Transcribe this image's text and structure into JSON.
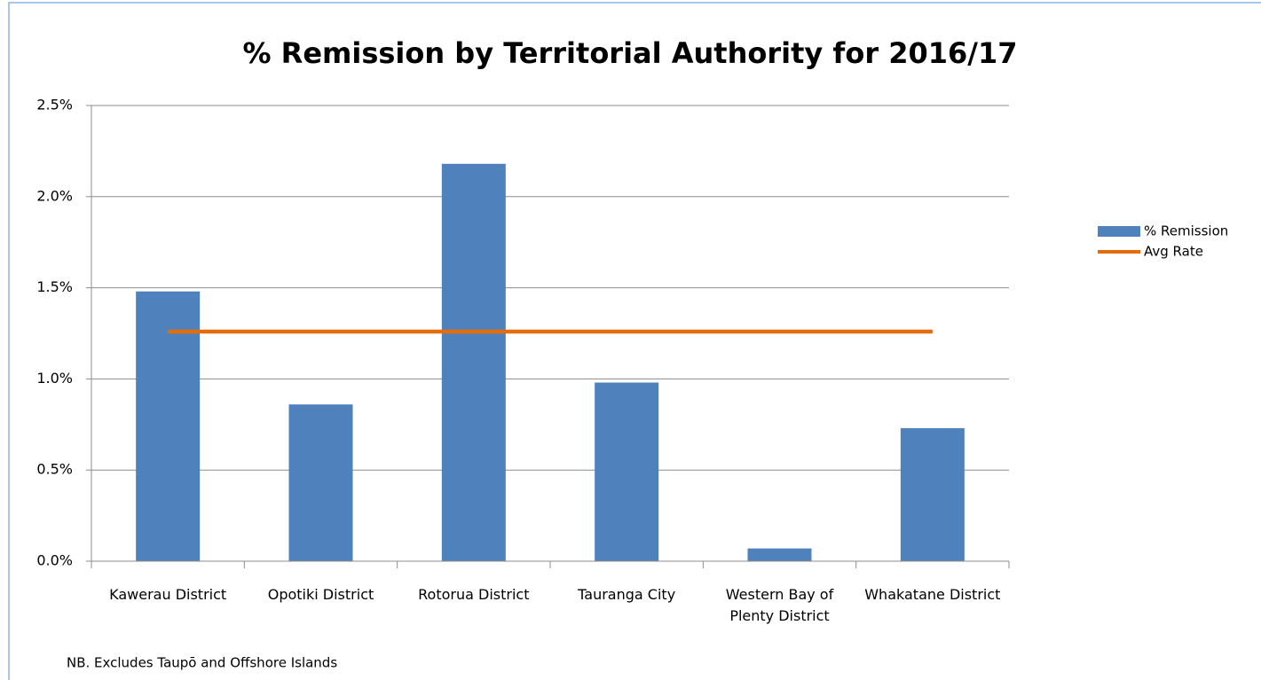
{
  "chart_data": {
    "type": "bar",
    "title": "% Remission by Territorial Authority for 2016/17",
    "categories": [
      "Kawerau District",
      "Opotiki District",
      "Rotorua District",
      "Tauranga City",
      "Western Bay of Plenty District",
      "Whakatane District"
    ],
    "series": [
      {
        "name": "% Remission",
        "type": "bar",
        "color": "#4f81bd",
        "values": [
          1.48,
          0.86,
          2.18,
          0.98,
          0.07,
          0.73
        ]
      },
      {
        "name": "Avg Rate",
        "type": "line",
        "color": "#e46c0a",
        "values": [
          1.26,
          1.26,
          1.26,
          1.26,
          1.26,
          1.26
        ]
      }
    ],
    "ylim": [
      0,
      2.5
    ],
    "yticks": [
      {
        "value": 0,
        "label": "0.0%"
      },
      {
        "value": 0.5,
        "label": "0.5%"
      },
      {
        "value": 1,
        "label": "1.0%"
      },
      {
        "value": 1.5,
        "label": "1.5%"
      },
      {
        "value": 2,
        "label": "2.0%"
      },
      {
        "value": 2.5,
        "label": "2.5%"
      }
    ],
    "grid": true,
    "legend": "right",
    "annotation": "NB. Excludes Taupō and Offshore Islands"
  }
}
